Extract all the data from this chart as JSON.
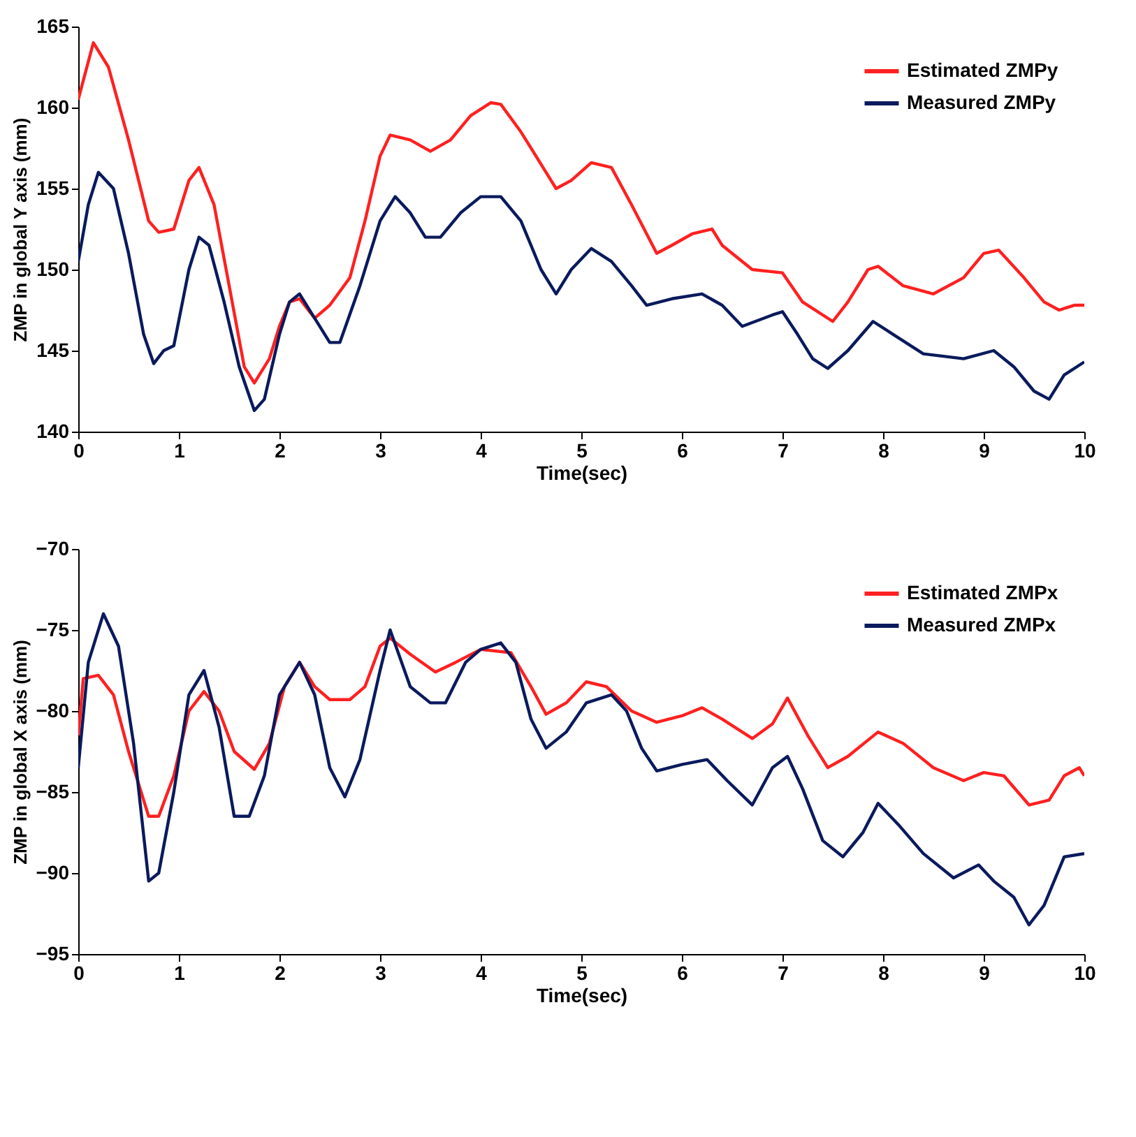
{
  "chart_data": [
    {
      "type": "line",
      "xlabel": "Time(sec)",
      "ylabel": "ZMP in global Y axis  (mm)",
      "xlim": [
        0,
        10
      ],
      "xticks": [
        0,
        1,
        2,
        3,
        4,
        5,
        6,
        7,
        8,
        9,
        10
      ],
      "ylim": [
        140,
        165
      ],
      "yticks": [
        140,
        145,
        150,
        155,
        160,
        165
      ],
      "grid": false,
      "legend": "top right",
      "series": [
        {
          "name": "Estimated ZMPy",
          "color": "#ff2020",
          "x": [
            0,
            0.15,
            0.3,
            0.5,
            0.7,
            0.8,
            0.95,
            1.1,
            1.2,
            1.35,
            1.5,
            1.65,
            1.75,
            1.9,
            2.0,
            2.1,
            2.2,
            2.35,
            2.5,
            2.7,
            2.85,
            3.0,
            3.1,
            3.3,
            3.5,
            3.7,
            3.9,
            4.1,
            4.2,
            4.4,
            4.6,
            4.75,
            4.9,
            5.1,
            5.3,
            5.5,
            5.75,
            5.9,
            6.1,
            6.3,
            6.4,
            6.7,
            7.0,
            7.2,
            7.5,
            7.65,
            7.85,
            7.95,
            8.2,
            8.5,
            8.8,
            9.0,
            9.15,
            9.4,
            9.6,
            9.75,
            9.9,
            10
          ],
          "values": [
            160.5,
            164,
            162.5,
            158,
            153,
            152.3,
            152.5,
            155.5,
            156.3,
            154,
            149,
            144,
            143,
            144.5,
            146.5,
            148,
            148.2,
            147,
            147.8,
            149.5,
            153,
            157,
            158.3,
            158,
            157.3,
            158,
            159.5,
            160.3,
            160.2,
            158.5,
            156.5,
            155,
            155.5,
            156.6,
            156.3,
            154,
            151,
            151.5,
            152.2,
            152.5,
            151.5,
            150,
            149.8,
            148,
            146.8,
            148,
            150,
            150.2,
            149,
            148.5,
            149.5,
            151,
            151.2,
            149.5,
            148,
            147.5,
            147.8,
            147.8
          ]
        },
        {
          "name": "Measured ZMPy",
          "color": "#0a1a5c",
          "x": [
            0,
            0.1,
            0.2,
            0.35,
            0.5,
            0.65,
            0.75,
            0.85,
            0.95,
            1.1,
            1.2,
            1.3,
            1.45,
            1.6,
            1.75,
            1.85,
            2.0,
            2.1,
            2.2,
            2.35,
            2.5,
            2.6,
            2.8,
            3.0,
            3.15,
            3.3,
            3.45,
            3.6,
            3.8,
            4.0,
            4.2,
            4.4,
            4.6,
            4.75,
            4.9,
            5.1,
            5.3,
            5.5,
            5.65,
            5.9,
            6.2,
            6.4,
            6.6,
            6.9,
            7.0,
            7.15,
            7.3,
            7.45,
            7.65,
            7.9,
            8.1,
            8.4,
            8.8,
            9.1,
            9.3,
            9.5,
            9.65,
            9.8,
            10
          ],
          "values": [
            150.5,
            154,
            156,
            155,
            151,
            146,
            144.2,
            145,
            145.3,
            150,
            152,
            151.5,
            148,
            144,
            141.3,
            142,
            146,
            148,
            148.5,
            147,
            145.5,
            145.5,
            149,
            153,
            154.5,
            153.5,
            152,
            152,
            153.5,
            154.5,
            154.5,
            153,
            150,
            148.5,
            150,
            151.3,
            150.5,
            149,
            147.8,
            148.2,
            148.5,
            147.8,
            146.5,
            147.2,
            147.4,
            146,
            144.5,
            143.9,
            145,
            146.8,
            146,
            144.8,
            144.5,
            145,
            144,
            142.5,
            142,
            143.5,
            144.3
          ]
        }
      ]
    },
    {
      "type": "line",
      "xlabel": "Time(sec)",
      "ylabel": "ZMP in global X axis (mm)",
      "xlim": [
        0,
        10
      ],
      "xticks": [
        0,
        1,
        2,
        3,
        4,
        5,
        6,
        7,
        8,
        9,
        10
      ],
      "ylim": [
        -95,
        -70
      ],
      "yticks": [
        -95,
        -90,
        -85,
        -80,
        -75,
        -70
      ],
      "grid": false,
      "legend": "top right",
      "series": [
        {
          "name": "Estimated ZMPx",
          "color": "#ff2020",
          "x": [
            0,
            0.05,
            0.2,
            0.35,
            0.5,
            0.7,
            0.8,
            0.95,
            1.1,
            1.25,
            1.4,
            1.55,
            1.75,
            1.9,
            2.05,
            2.2,
            2.35,
            2.5,
            2.7,
            2.85,
            3.0,
            3.1,
            3.3,
            3.55,
            3.75,
            4.0,
            4.3,
            4.5,
            4.65,
            4.85,
            5.05,
            5.25,
            5.5,
            5.75,
            6.0,
            6.2,
            6.4,
            6.7,
            6.9,
            7.05,
            7.25,
            7.45,
            7.65,
            7.95,
            8.2,
            8.5,
            8.8,
            9.0,
            9.2,
            9.45,
            9.65,
            9.8,
            9.95,
            10
          ],
          "values": [
            -81.5,
            -78,
            -77.8,
            -79,
            -82.5,
            -86.5,
            -86.5,
            -84,
            -80,
            -78.8,
            -80,
            -82.5,
            -83.6,
            -82,
            -78.5,
            -77,
            -78.5,
            -79.3,
            -79.3,
            -78.5,
            -76,
            -75.5,
            -76.5,
            -77.6,
            -77,
            -76.2,
            -76.4,
            -78.5,
            -80.2,
            -79.5,
            -78.2,
            -78.5,
            -80,
            -80.7,
            -80.3,
            -79.8,
            -80.5,
            -81.7,
            -80.8,
            -79.2,
            -81.5,
            -83.5,
            -82.8,
            -81.3,
            -82,
            -83.5,
            -84.3,
            -83.8,
            -84,
            -85.8,
            -85.5,
            -84,
            -83.5,
            -84
          ]
        },
        {
          "name": "Measured ZMPx",
          "color": "#0a1a5c",
          "x": [
            0,
            0.1,
            0.25,
            0.4,
            0.55,
            0.7,
            0.8,
            0.95,
            1.1,
            1.25,
            1.4,
            1.55,
            1.7,
            1.85,
            2.0,
            2.2,
            2.35,
            2.5,
            2.65,
            2.8,
            3.0,
            3.1,
            3.3,
            3.5,
            3.65,
            3.85,
            4.0,
            4.2,
            4.35,
            4.5,
            4.65,
            4.85,
            5.05,
            5.3,
            5.45,
            5.6,
            5.75,
            6.0,
            6.25,
            6.45,
            6.7,
            6.9,
            7.05,
            7.2,
            7.4,
            7.6,
            7.8,
            7.95,
            8.15,
            8.4,
            8.7,
            8.95,
            9.1,
            9.3,
            9.45,
            9.6,
            9.8,
            10
          ],
          "values": [
            -83.5,
            -77,
            -74,
            -76,
            -82,
            -90.5,
            -90,
            -85,
            -79,
            -77.5,
            -81,
            -86.5,
            -86.5,
            -84,
            -79,
            -77,
            -79,
            -83.5,
            -85.3,
            -83,
            -77.5,
            -75,
            -78.5,
            -79.5,
            -79.5,
            -77,
            -76.2,
            -75.8,
            -77,
            -80.5,
            -82.3,
            -81.3,
            -79.5,
            -79,
            -80,
            -82.3,
            -83.7,
            -83.3,
            -83,
            -84.3,
            -85.8,
            -83.5,
            -82.8,
            -84.8,
            -88,
            -89,
            -87.5,
            -85.7,
            -87,
            -88.8,
            -90.3,
            -89.5,
            -90.5,
            -91.5,
            -93.2,
            -92,
            -89,
            -88.8
          ]
        }
      ]
    }
  ]
}
